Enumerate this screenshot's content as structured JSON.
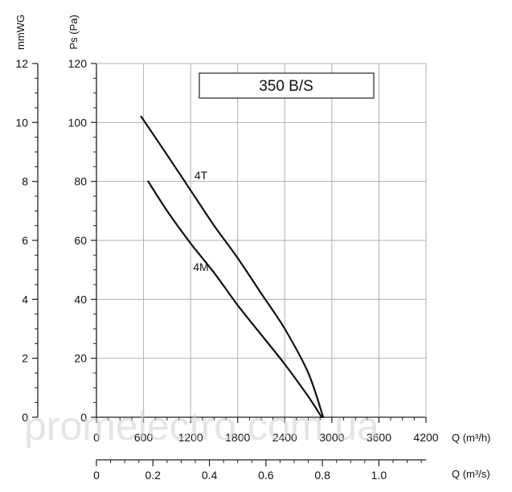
{
  "chart_data": {
    "type": "line",
    "title": "350 B/S",
    "x_axis_primary": {
      "label": "Q (m³/h)",
      "ticks": [
        "0",
        "600",
        "1200",
        "1800",
        "2400",
        "3000",
        "3600",
        "4200"
      ],
      "range": [
        0,
        4200
      ]
    },
    "x_axis_secondary": {
      "label": "Q (m³/s)",
      "ticks": [
        "0",
        "0.2",
        "0.4",
        "0.6",
        "0.8",
        "1.0"
      ],
      "values": [
        0,
        0.2,
        0.4,
        0.6,
        0.8,
        1.0
      ],
      "range": [
        0,
        1.1667
      ]
    },
    "y_axis_primary": {
      "label": "Ps (Pa)",
      "ticks": [
        "0",
        "20",
        "40",
        "60",
        "80",
        "100",
        "120"
      ],
      "range": [
        0,
        120
      ]
    },
    "y_axis_secondary": {
      "label": "mmWG",
      "ticks": [
        "0",
        "2",
        "4",
        "6",
        "8",
        "10",
        "12"
      ],
      "range": [
        0,
        12
      ]
    },
    "grid": true,
    "series": [
      {
        "name": "4T",
        "x": [
          570,
          900,
          1200,
          1500,
          1800,
          2100,
          2400,
          2700,
          2890
        ],
        "y": [
          102,
          89,
          77,
          65,
          54,
          42,
          30,
          15,
          0
        ]
      },
      {
        "name": "4M",
        "x": [
          660,
          900,
          1200,
          1500,
          1800,
          2100,
          2400,
          2700,
          2870
        ],
        "y": [
          80,
          70,
          59,
          49,
          38,
          28,
          18,
          7,
          0
        ]
      }
    ]
  },
  "watermark": "promelectro.com.ua"
}
